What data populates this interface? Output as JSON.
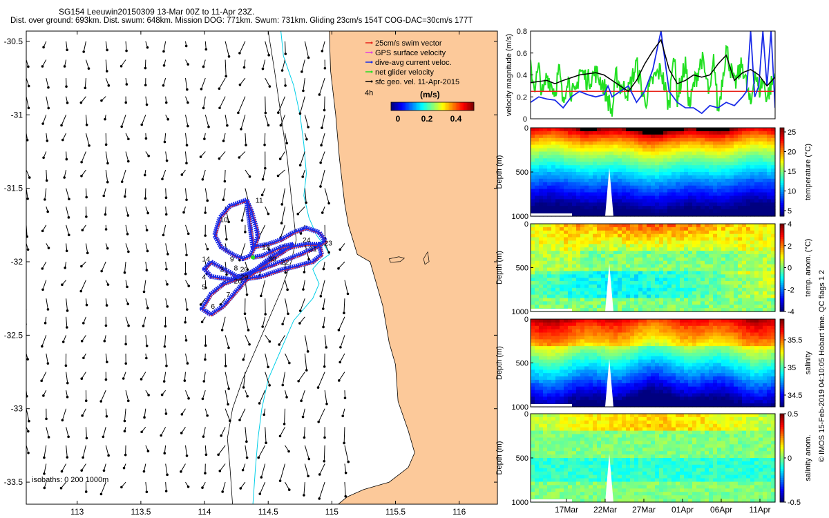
{
  "header": {
    "line1": "SG154 Leeuwin20150309 13-Mar 00Z to 11-Apr 23Z.",
    "line2": "Dist. over ground: 693km. Dist. swum: 648km. Mission DOG: 771km. Swum: 731km. Gliding 23cm/s 154T COG-DAC=30cm/s 177T"
  },
  "footer": "© IMOS 15-Feb-2019 04:10:05 Hobart time. QC flags 1 2",
  "colors": {
    "land": "#fcc99a",
    "swim": "#e8231a",
    "gps": "#e040e0",
    "dac": "#1a2be8",
    "net": "#22e022",
    "geo": "#000000",
    "isobath200": "#00cfe8"
  },
  "chart_data": [
    {
      "id": "map",
      "type": "scatter",
      "title": "",
      "xlim": [
        112.6,
        116.3
      ],
      "ylim": [
        -33.65,
        -30.43
      ],
      "xticks": [
        113,
        113.5,
        114,
        114.5,
        115,
        115.5,
        116
      ],
      "xtick_labels": [
        "113",
        "113.5",
        "114",
        "114.5",
        "115",
        "115.5",
        "116"
      ],
      "yticks": [
        -30.5,
        -31,
        -31.5,
        -32,
        -32.5,
        -33,
        -33.5
      ],
      "ytick_labels": [
        "-30.5",
        "-31",
        "-31.5",
        "-32",
        "-32.5",
        "-33",
        "-33.5"
      ],
      "legend": [
        {
          "label": "25cm/s swim vector",
          "color": "#e8231a"
        },
        {
          "label": "GPS surface velocity",
          "color": "#e040e0"
        },
        {
          "label": "dive-avg current veloc.",
          "color": "#1a2be8"
        },
        {
          "label": "net glider velocity",
          "color": "#22e022"
        },
        {
          "label": "sfc geo. vel. 11-Apr-2015",
          "color": "#000000"
        }
      ],
      "colorbar_label": "(m/s)",
      "colorbar_ticks": [
        "0",
        "0.2",
        "0.4"
      ],
      "tag_4h": "4h",
      "isobath_label": "isobaths: 0   200  1000m",
      "track": [
        [
          114.33,
          -31.58
        ],
        [
          114.2,
          -31.62
        ],
        [
          114.12,
          -31.7
        ],
        [
          114.08,
          -31.82
        ],
        [
          114.13,
          -31.9
        ],
        [
          114.22,
          -31.95
        ],
        [
          114.3,
          -31.98
        ],
        [
          114.36,
          -31.96
        ],
        [
          114.4,
          -31.88
        ],
        [
          114.42,
          -31.82
        ],
        [
          114.4,
          -31.75
        ],
        [
          114.37,
          -31.66
        ],
        [
          114.33,
          -31.58
        ],
        [
          114.38,
          -31.9
        ],
        [
          114.5,
          -31.88
        ],
        [
          114.6,
          -31.85
        ],
        [
          114.7,
          -31.8
        ],
        [
          114.8,
          -31.77
        ],
        [
          114.9,
          -31.8
        ],
        [
          114.95,
          -31.86
        ],
        [
          114.88,
          -31.9
        ],
        [
          114.75,
          -31.95
        ],
        [
          114.6,
          -32.0
        ],
        [
          114.45,
          -32.05
        ],
        [
          114.3,
          -32.1
        ],
        [
          114.15,
          -32.15
        ],
        [
          114.05,
          -32.22
        ],
        [
          113.98,
          -32.32
        ],
        [
          114.05,
          -32.36
        ],
        [
          114.15,
          -32.3
        ],
        [
          114.25,
          -32.2
        ],
        [
          114.35,
          -32.1
        ],
        [
          114.45,
          -32.02
        ],
        [
          114.55,
          -31.95
        ],
        [
          114.68,
          -31.9
        ],
        [
          114.8,
          -31.88
        ],
        [
          114.9,
          -31.88
        ],
        [
          114.92,
          -31.95
        ],
        [
          114.85,
          -32.0
        ],
        [
          114.72,
          -32.03
        ],
        [
          114.58,
          -32.06
        ],
        [
          114.45,
          -32.1
        ],
        [
          114.3,
          -32.12
        ],
        [
          114.15,
          -32.05
        ],
        [
          114.05,
          -32.0
        ],
        [
          114.0,
          -32.05
        ],
        [
          114.05,
          -32.1
        ],
        [
          114.2,
          -32.12
        ],
        [
          114.35,
          -32.08
        ],
        [
          114.5,
          -32.0
        ],
        [
          114.62,
          -31.93
        ],
        [
          114.7,
          -31.88
        ],
        [
          114.6,
          -31.9
        ],
        [
          114.45,
          -31.96
        ],
        [
          114.38,
          -31.97
        ]
      ],
      "track_labels": [
        {
          "t": "11",
          "lon": 114.4,
          "lat": -31.58
        },
        {
          "t": "10",
          "lon": 114.12,
          "lat": -31.71
        },
        {
          "t": "13",
          "lon": 114.45,
          "lat": -31.9
        },
        {
          "t": "24",
          "lon": 114.77,
          "lat": -31.85
        },
        {
          "t": "31",
          "lon": 114.82,
          "lat": -31.91
        },
        {
          "t": "23",
          "lon": 114.94,
          "lat": -31.87
        },
        {
          "t": "14",
          "lon": 113.98,
          "lat": -31.98
        },
        {
          "t": "9",
          "lon": 114.2,
          "lat": -31.98
        },
        {
          "t": "8",
          "lon": 114.23,
          "lat": -32.04
        },
        {
          "t": "30",
          "lon": 114.5,
          "lat": -31.98
        },
        {
          "t": "22",
          "lon": 114.6,
          "lat": -32.0
        },
        {
          "t": "3",
          "lon": 114.12,
          "lat": -32.05
        },
        {
          "t": "4",
          "lon": 113.98,
          "lat": -32.1
        },
        {
          "t": "20",
          "lon": 114.28,
          "lat": -32.05
        },
        {
          "t": "29",
          "lon": 114.28,
          "lat": -32.1
        },
        {
          "t": "26",
          "lon": 114.23,
          "lat": -32.13
        },
        {
          "t": "5",
          "lon": 113.98,
          "lat": -32.17
        },
        {
          "t": "7",
          "lon": 114.17,
          "lat": -32.22
        },
        {
          "t": "6",
          "lon": 114.05,
          "lat": -32.3
        }
      ]
    },
    {
      "id": "velocity",
      "type": "line",
      "ylabel": "velocity magnitude (m/s)",
      "ylim": [
        0,
        0.8
      ],
      "yticks": [
        0,
        0.2,
        0.4,
        0.6,
        0.8
      ],
      "ytick_labels": [
        "0",
        "0.2",
        "0.4",
        "0.6",
        "0.8"
      ],
      "xlim": [
        0,
        30
      ],
      "series": [
        {
          "name": "25cm/s swim vector",
          "color": "#e8231a",
          "values": [
            [
              0,
              0.25
            ],
            [
              30,
              0.25
            ]
          ]
        },
        {
          "name": "net glider velocity",
          "color": "#22e022",
          "values": [
            [
              0,
              0.45
            ],
            [
              0.5,
              0.3
            ],
            [
              1,
              0.45
            ],
            [
              1.5,
              0.2
            ],
            [
              2,
              0.4
            ],
            [
              3,
              0.25
            ],
            [
              3.5,
              0.45
            ],
            [
              4,
              0.12
            ],
            [
              4.5,
              0.4
            ],
            [
              5,
              0.25
            ],
            [
              5.5,
              0.2
            ],
            [
              6,
              0.45
            ],
            [
              7,
              0.35
            ],
            [
              8,
              0.42
            ],
            [
              9,
              0.3
            ],
            [
              10,
              0.05
            ],
            [
              10.5,
              0.4
            ],
            [
              11,
              0.3
            ],
            [
              12,
              0.25
            ],
            [
              13,
              0.5
            ],
            [
              14,
              0.15
            ],
            [
              15,
              0.35
            ],
            [
              16,
              0.45
            ],
            [
              17,
              0.1
            ],
            [
              17.5,
              0.65
            ],
            [
              18,
              0.2
            ],
            [
              19,
              0.5
            ],
            [
              19.5,
              0.1
            ],
            [
              20,
              0.3
            ],
            [
              21,
              0.55
            ],
            [
              22,
              0.2
            ],
            [
              22.5,
              0.55
            ],
            [
              23,
              0.05
            ],
            [
              24,
              0.65
            ],
            [
              25,
              0.3
            ],
            [
              26,
              0.5
            ],
            [
              27,
              0.1
            ],
            [
              27.5,
              0.45
            ],
            [
              28,
              0.25
            ],
            [
              28.5,
              0.35
            ],
            [
              29,
              0.2
            ],
            [
              30,
              0.4
            ]
          ]
        },
        {
          "name": "dive-avg current veloc.",
          "color": "#1a2be8",
          "values": [
            [
              0,
              0.15
            ],
            [
              1,
              0.2
            ],
            [
              2,
              0.18
            ],
            [
              3,
              0.17
            ],
            [
              4,
              0.1
            ],
            [
              5,
              0.2
            ],
            [
              6,
              0.25
            ],
            [
              7,
              0.22
            ],
            [
              8,
              0.2
            ],
            [
              9,
              0.22
            ],
            [
              9.5,
              0.3
            ],
            [
              10,
              0.2
            ],
            [
              11,
              0.25
            ],
            [
              12,
              0.3
            ],
            [
              13,
              0.15
            ],
            [
              14,
              0.25
            ],
            [
              15,
              0.45
            ],
            [
              16,
              0.8
            ],
            [
              17,
              0.25
            ],
            [
              18,
              0.15
            ],
            [
              19,
              0.1
            ],
            [
              20,
              0.1
            ],
            [
              21,
              0.05
            ],
            [
              22,
              0.12
            ],
            [
              23,
              0.1
            ],
            [
              24,
              0.15
            ],
            [
              25,
              0.12
            ],
            [
              26,
              0.2
            ],
            [
              26.5,
              0.25
            ],
            [
              27,
              0.8
            ],
            [
              27.5,
              0.2
            ],
            [
              28,
              0.3
            ],
            [
              28.5,
              0.8
            ],
            [
              29,
              0.3
            ],
            [
              29.5,
              0.8
            ],
            [
              30,
              0.1
            ]
          ]
        },
        {
          "name": "sfc geo. vel.",
          "color": "#000000",
          "values": [
            [
              0,
              0.33
            ],
            [
              2,
              0.35
            ],
            [
              3,
              0.32
            ],
            [
              4,
              0.35
            ],
            [
              6,
              0.4
            ],
            [
              8,
              0.42
            ],
            [
              9,
              0.4
            ],
            [
              10,
              0.35
            ],
            [
              11,
              0.3
            ],
            [
              12,
              0.25
            ],
            [
              13,
              0.35
            ],
            [
              14,
              0.5
            ],
            [
              15,
              0.62
            ],
            [
              16,
              0.72
            ],
            [
              17,
              0.45
            ],
            [
              18,
              0.32
            ],
            [
              19,
              0.35
            ],
            [
              20,
              0.4
            ],
            [
              21,
              0.38
            ],
            [
              22,
              0.4
            ],
            [
              23,
              0.5
            ],
            [
              24,
              0.58
            ],
            [
              25,
              0.35
            ],
            [
              26,
              0.42
            ],
            [
              27,
              0.45
            ],
            [
              28,
              0.4
            ],
            [
              28.5,
              0.35
            ],
            [
              29,
              0.3
            ],
            [
              30,
              0.38
            ]
          ]
        }
      ]
    },
    {
      "id": "temperature",
      "type": "heatmap",
      "ylabel": "Depth (m)",
      "ylim": [
        0,
        1000
      ],
      "yticks": [
        0,
        500,
        1000
      ],
      "ytick_labels": [
        "0",
        "500",
        "1000"
      ],
      "colorbar_label": "temperature (°C)",
      "colorbar_ticks": [
        "25",
        "20",
        "15",
        "10",
        "5"
      ]
    },
    {
      "id": "temp_anomaly",
      "type": "heatmap",
      "ylabel": "Depth (m)",
      "ylim": [
        0,
        1000
      ],
      "yticks": [
        0,
        500,
        1000
      ],
      "ytick_labels": [
        "0",
        "500",
        "1000"
      ],
      "colorbar_label": "temp. anom. (°C)",
      "colorbar_ticks": [
        "4",
        "2",
        "0",
        "-2",
        "-4"
      ]
    },
    {
      "id": "salinity",
      "type": "heatmap",
      "ylabel": "Depth (m)",
      "ylim": [
        0,
        1000
      ],
      "yticks": [
        0,
        500,
        1000
      ],
      "ytick_labels": [
        "0",
        "500",
        "1000"
      ],
      "colorbar_label": "salinity",
      "colorbar_ticks": [
        "35.5",
        "35",
        "34.5"
      ]
    },
    {
      "id": "salinity_anomaly",
      "type": "heatmap",
      "ylabel": "Depth (m)",
      "ylim": [
        0,
        1000
      ],
      "yticks": [
        0,
        500,
        1000
      ],
      "ytick_labels": [
        "0",
        "500",
        "1000"
      ],
      "colorbar_label": "salinity anom.",
      "colorbar_ticks": [
        "0.5",
        "0",
        "-0.5"
      ],
      "xtick_labels": [
        "17Mar",
        "22Mar",
        "27Mar",
        "01Apr",
        "06Apr",
        "11Apr"
      ]
    }
  ]
}
